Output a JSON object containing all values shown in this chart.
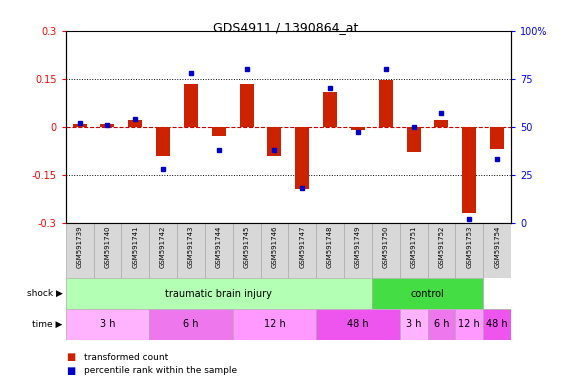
{
  "title": "GDS4911 / 1390864_at",
  "samples": [
    "GSM591739",
    "GSM591740",
    "GSM591741",
    "GSM591742",
    "GSM591743",
    "GSM591744",
    "GSM591745",
    "GSM591746",
    "GSM591747",
    "GSM591748",
    "GSM591749",
    "GSM591750",
    "GSM591751",
    "GSM591752",
    "GSM591753",
    "GSM591754"
  ],
  "red_bars": [
    0.01,
    0.01,
    0.02,
    -0.09,
    0.135,
    -0.03,
    0.135,
    -0.09,
    -0.195,
    0.11,
    -0.01,
    0.145,
    -0.08,
    0.02,
    -0.27,
    -0.07
  ],
  "blue_dots": [
    52,
    51,
    54,
    28,
    78,
    38,
    80,
    38,
    18,
    70,
    47,
    80,
    50,
    57,
    2,
    33
  ],
  "ylim_left": [
    -0.3,
    0.3
  ],
  "ylim_right": [
    0,
    100
  ],
  "yticks_left": [
    -0.3,
    -0.15,
    0.0,
    0.15,
    0.3
  ],
  "yticks_right": [
    0,
    25,
    50,
    75,
    100
  ],
  "hlines_dotted": [
    0.15,
    -0.15
  ],
  "hline_dashed": 0.0,
  "shock_groups": [
    {
      "label": "traumatic brain injury",
      "start": 0,
      "end": 11,
      "color": "#b3ffb3"
    },
    {
      "label": "control",
      "start": 11,
      "end": 15,
      "color": "#44dd44"
    }
  ],
  "time_groups": [
    {
      "label": "3 h",
      "start": 0,
      "end": 3,
      "color": "#ffb3ff"
    },
    {
      "label": "6 h",
      "start": 3,
      "end": 6,
      "color": "#ee77ee"
    },
    {
      "label": "12 h",
      "start": 6,
      "end": 9,
      "color": "#ff99ff"
    },
    {
      "label": "48 h",
      "start": 9,
      "end": 12,
      "color": "#ee55ee"
    },
    {
      "label": "3 h",
      "start": 12,
      "end": 13,
      "color": "#ffb3ff"
    },
    {
      "label": "6 h",
      "start": 13,
      "end": 14,
      "color": "#ee77ee"
    },
    {
      "label": "12 h",
      "start": 14,
      "end": 15,
      "color": "#ff99ff"
    },
    {
      "label": "48 h",
      "start": 15,
      "end": 16,
      "color": "#ee55ee"
    }
  ],
  "bar_color": "#cc2200",
  "dot_color": "#0000cc",
  "zero_line_color": "#cc0000",
  "cell_bg": "#d8d8d8",
  "cell_edge": "#aaaaaa",
  "plot_bg": "#ffffff",
  "label_shock": "shock",
  "label_time": "time",
  "legend_bar": "transformed count",
  "legend_dot": "percentile rank within the sample"
}
